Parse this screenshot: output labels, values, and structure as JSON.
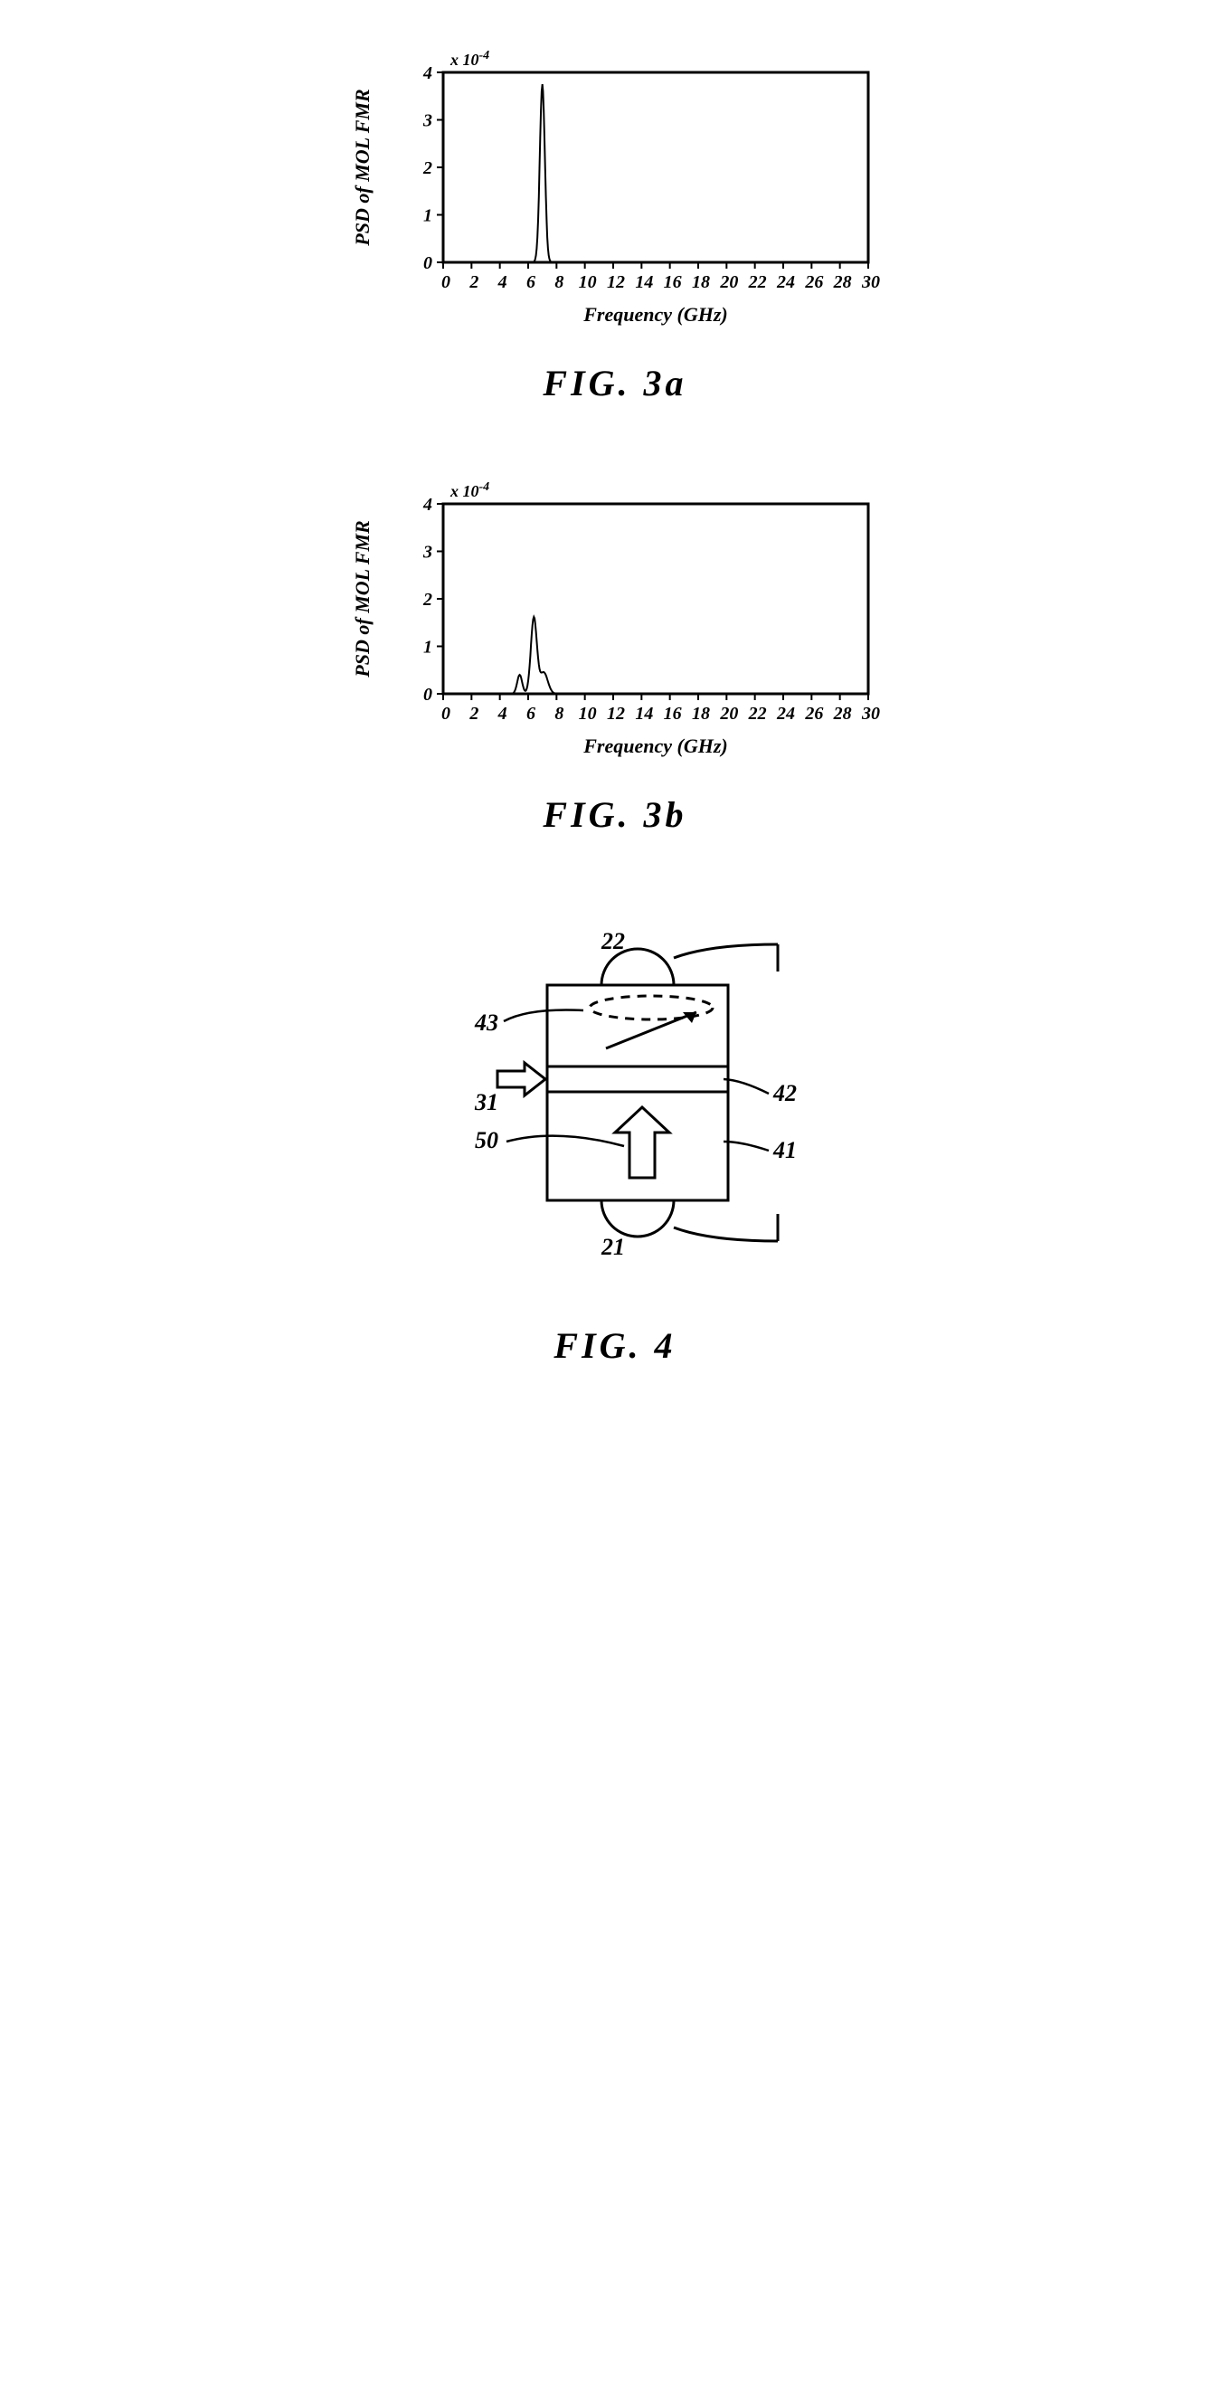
{
  "fig3a": {
    "type": "line",
    "caption": "FIG.  3a",
    "ylabel": "PSD of MOL FMR",
    "xlabel": "Frequency (GHz)",
    "exponent_label": "x 10",
    "exponent_sup": "-4",
    "xlim": [
      0,
      30
    ],
    "ylim": [
      0,
      4
    ],
    "xticks": [
      0,
      2,
      4,
      6,
      8,
      10,
      12,
      14,
      16,
      18,
      20,
      22,
      24,
      26,
      28,
      30
    ],
    "yticks": [
      0,
      1,
      2,
      3,
      4
    ],
    "series_color": "#000000",
    "line_width": 2,
    "peak_freq": 7,
    "peak_amp": 3.75,
    "peak_hw": 0.25,
    "stroke_color": "#000000",
    "bg_color": "#ffffff",
    "label_fontsize": 22,
    "tick_fontsize": 20
  },
  "fig3b": {
    "type": "line",
    "caption": "FIG.  3b",
    "ylabel": "PSD of MOL FMR",
    "xlabel": "Frequency (GHz)",
    "exponent_label": "x 10",
    "exponent_sup": "-4",
    "xlim": [
      0,
      30
    ],
    "ylim": [
      0,
      4
    ],
    "xticks": [
      0,
      2,
      4,
      6,
      8,
      10,
      12,
      14,
      16,
      18,
      20,
      22,
      24,
      26,
      28,
      30
    ],
    "yticks": [
      0,
      1,
      2,
      3,
      4
    ],
    "series_color": "#000000",
    "line_width": 2,
    "peaks": [
      {
        "freq": 5.4,
        "amp": 0.4,
        "hw": 0.25
      },
      {
        "freq": 6.4,
        "amp": 1.6,
        "hw": 0.3
      },
      {
        "freq": 7.1,
        "amp": 0.45,
        "hw": 0.4
      }
    ],
    "stroke_color": "#000000",
    "bg_color": "#ffffff",
    "label_fontsize": 22,
    "tick_fontsize": 20
  },
  "fig4": {
    "type": "diagram",
    "caption": "FIG.  4",
    "stroke_color": "#000000",
    "bg_color": "#ffffff",
    "line_width": 3,
    "labels": {
      "top_node": "22",
      "bottom_node": "21",
      "top_layer": "43",
      "mid_layer": "42",
      "bot_layer": "41",
      "left_arrow": "31",
      "inside_arrow": "50"
    }
  }
}
